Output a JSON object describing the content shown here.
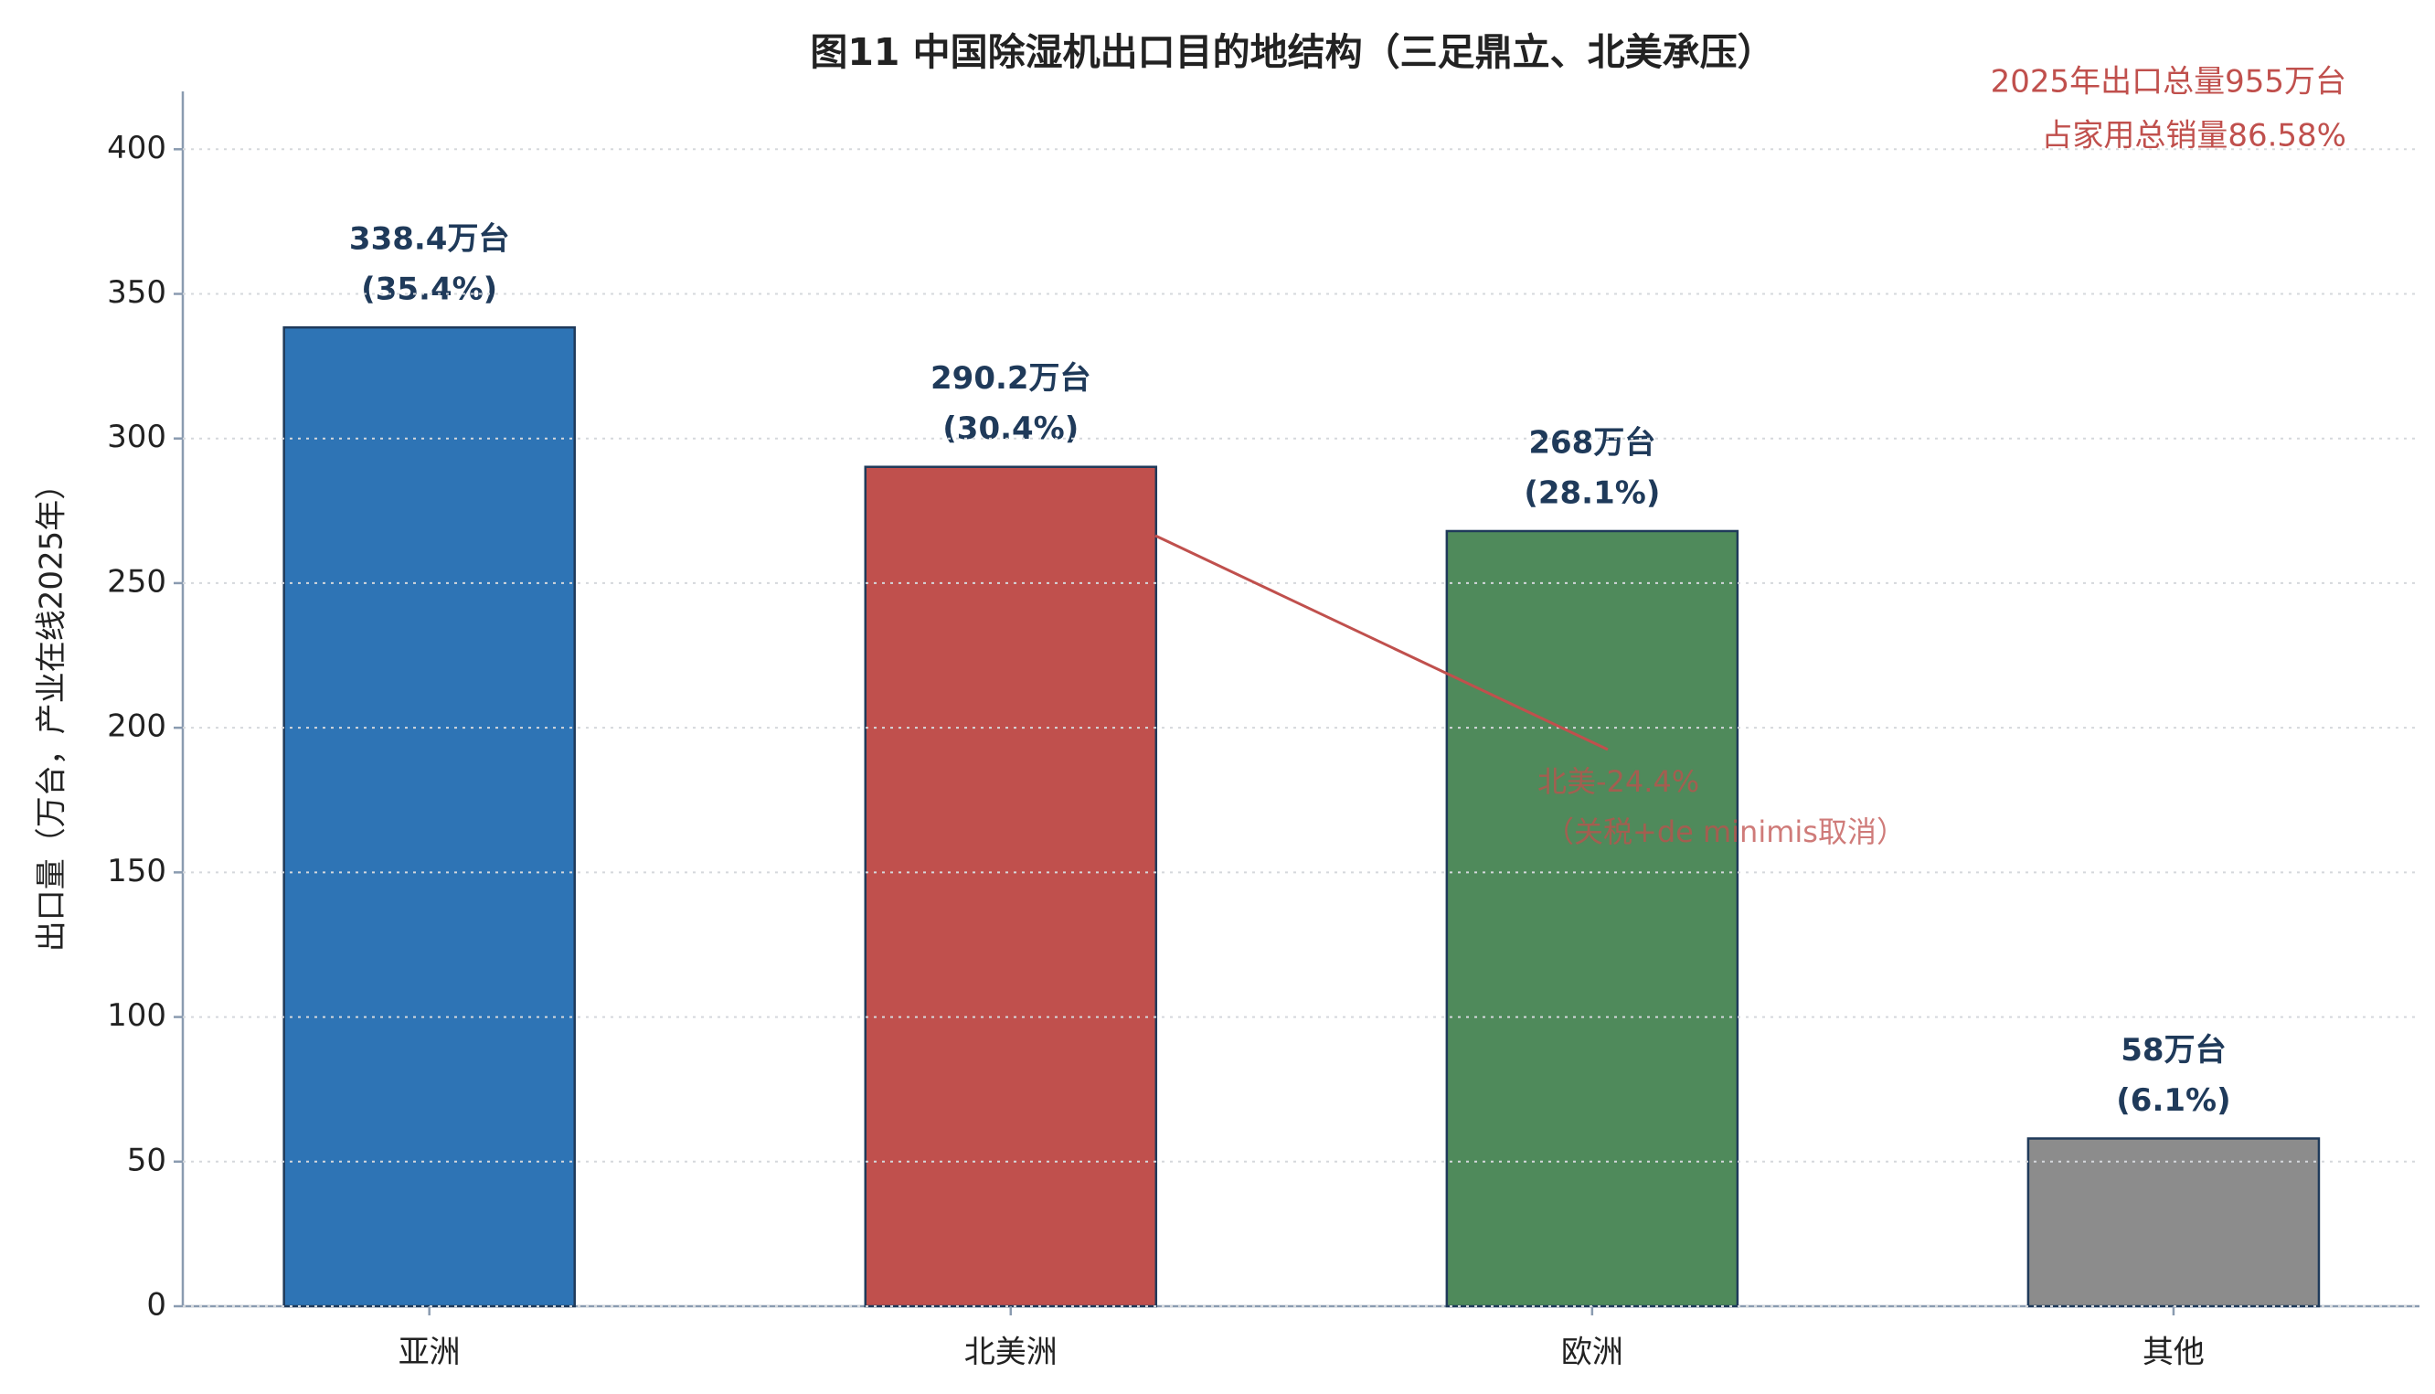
{
  "chart_data": {
    "type": "bar",
    "title": "图11  中国除湿机出口目的地结构（三足鼎立、北美承压）",
    "y_label": "出口量（万台，产业在线2025年）",
    "categories": [
      "亚洲",
      "北美洲",
      "欧洲",
      "其他"
    ],
    "values": [
      338.4,
      290.2,
      268,
      58
    ],
    "value_labels": [
      "338.4万台",
      "290.2万台",
      "268万台",
      "58万台"
    ],
    "share_labels": [
      "(35.4%)",
      "(30.4%)",
      "(28.1%)",
      "(6.1%)"
    ],
    "colors": [
      "#2e74b5",
      "#c0504d",
      "#4f8a5b",
      "#8c8c8c"
    ],
    "ylim": [
      0,
      420
    ],
    "yticks": [
      0,
      50,
      100,
      150,
      200,
      250,
      300,
      350,
      400
    ],
    "grid": true,
    "annotations": [
      "北美-24.4%",
      "（关税+de minimis取消）"
    ],
    "summary": [
      "2025年出口总量955万台",
      "占家用总销量86.58%"
    ]
  }
}
